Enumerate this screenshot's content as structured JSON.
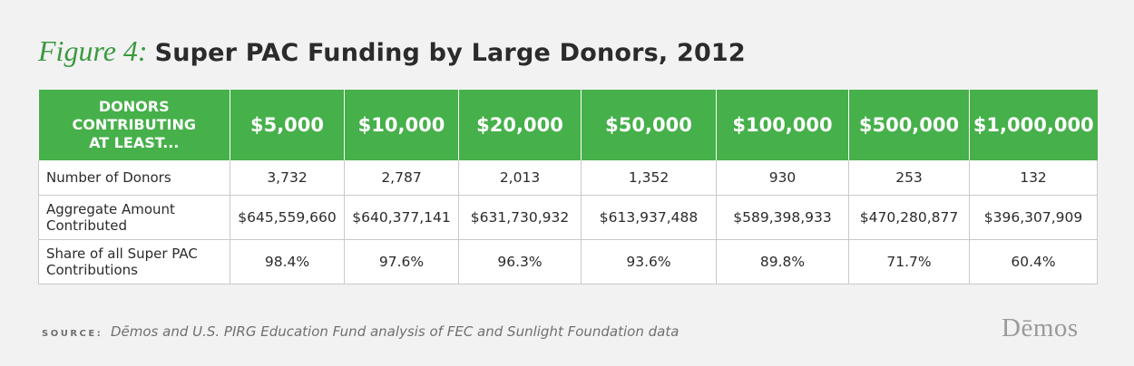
{
  "title": {
    "figure_label": "Figure 4:",
    "text": "Super PAC Funding by Large Donors, 2012"
  },
  "table": {
    "header_first": "DONORS CONTRIBUTING AT LEAST...",
    "columns": [
      "$5,000",
      "$10,000",
      "$20,000",
      "$50,000",
      "$100,000",
      "$500,000",
      "$1,000,000"
    ],
    "rows": [
      {
        "label": "Number of Donors",
        "values": [
          "3,732",
          "2,787",
          "2,013",
          "1,352",
          "930",
          "253",
          "132"
        ]
      },
      {
        "label": "Aggregate Amount Contributed",
        "values": [
          "$645,559,660",
          "$640,377,141",
          "$631,730,932",
          "$613,937,488",
          "$589,398,933",
          "$470,280,877",
          "$396,307,909"
        ]
      },
      {
        "label": "Share of all Super PAC Contributions",
        "values": [
          "98.4%",
          "97.6%",
          "96.3%",
          "93.6%",
          "89.8%",
          "71.7%",
          "60.4%"
        ]
      }
    ]
  },
  "source": {
    "label": "SOURCE:",
    "text": "Dēmos and U.S. PIRG Education Fund analysis of FEC and Sunlight Foundation data"
  },
  "logo": "Dēmos",
  "colors": {
    "accent": "#46b04a",
    "figure_label": "#3a9a41",
    "background": "#f2f2f2"
  }
}
